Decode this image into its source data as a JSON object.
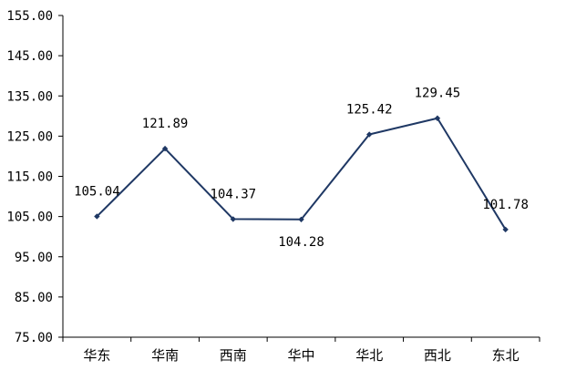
{
  "chart_data": {
    "type": "line",
    "categories": [
      "华东",
      "华南",
      "西南",
      "华中",
      "华北",
      "西北",
      "东北"
    ],
    "values": [
      105.04,
      121.89,
      104.37,
      104.28,
      125.42,
      129.45,
      101.78
    ],
    "data_labels": [
      "105.04",
      "121.89",
      "104.37",
      "104.28",
      "125.42",
      "129.45",
      "101.78"
    ],
    "label_positions": [
      "above",
      "above",
      "above",
      "below",
      "above",
      "above",
      "above"
    ],
    "y_ticks": [
      "75.00",
      "85.00",
      "95.00",
      "105.00",
      "115.00",
      "125.00",
      "135.00",
      "145.00",
      "155.00"
    ],
    "ylim": [
      75,
      155
    ],
    "grid": false,
    "legend": "none",
    "line_color": "#1F3864",
    "marker_color": "#1F3864"
  }
}
